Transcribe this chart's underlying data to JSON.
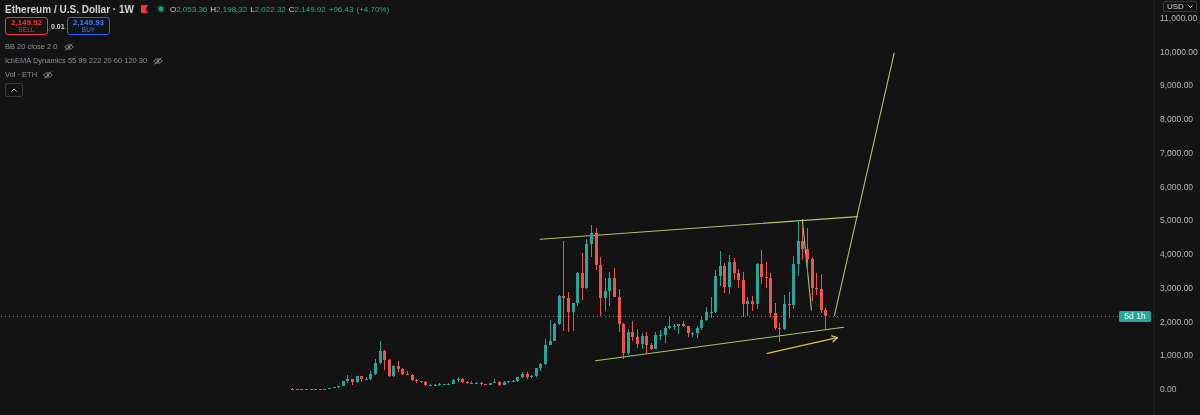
{
  "chart_data": {
    "type": "candlestick",
    "title": "Ethereum / U.S. Dollar · 1W",
    "subtitle": "O2,053.36 H2,198.32 L2,022.32 C2,149.92 +96.43 (+4.70%)",
    "categories": [
      null,
      null,
      null,
      null,
      null,
      null,
      null,
      null,
      null,
      null,
      null,
      null,
      null,
      null,
      null,
      null,
      null,
      null,
      null,
      null,
      null,
      null,
      null,
      null,
      null,
      null,
      null,
      null,
      null,
      null,
      null,
      null,
      null,
      null,
      null,
      null,
      null,
      null,
      null,
      null,
      null,
      null,
      null,
      null,
      null,
      null,
      null,
      null,
      null,
      null,
      null,
      null,
      null,
      null,
      null,
      null,
      null,
      null,
      null,
      null,
      null,
      null,
      null,
      null,
      null,
      null,
      null,
      null,
      null,
      null,
      null,
      null,
      null,
      null,
      null,
      null,
      null,
      null,
      null,
      null,
      null,
      null,
      null,
      null,
      null,
      null,
      null,
      null,
      null,
      null,
      null,
      null,
      null,
      null,
      null,
      null,
      null,
      null,
      null,
      null,
      null,
      null,
      null,
      null,
      null,
      null,
      null,
      null,
      null,
      null,
      null,
      null,
      null,
      null,
      null,
      null,
      null,
      null,
      null,
      null,
      null,
      null,
      null,
      null,
      null,
      null,
      null,
      null,
      null,
      null,
      null,
      null,
      null,
      null,
      null,
      null,
      null,
      null,
      null,
      null,
      null,
      null,
      null,
      null,
      null,
      null,
      null,
      null,
      null,
      null,
      null,
      null,
      null,
      null,
      null,
      null,
      null,
      null,
      null,
      null,
      null,
      null,
      null,
      null,
      null,
      null,
      null,
      null,
      null,
      null,
      null,
      null,
      null,
      null,
      null,
      null,
      null,
      null,
      null,
      null,
      null,
      null,
      null,
      null,
      null,
      null,
      null,
      null,
      null,
      null,
      null,
      null,
      null,
      null,
      null,
      null,
      null,
      null,
      null,
      null,
      null,
      null,
      null,
      null,
      null,
      null,
      null,
      null,
      null,
      null,
      null,
      null,
      null,
      null,
      null,
      null,
      null,
      null,
      null,
      null,
      null,
      null,
      null,
      null,
      null,
      null,
      null,
      null,
      null,
      null,
      null,
      null,
      null,
      null,
      null,
      null,
      null,
      null,
      null,
      null,
      null,
      null,
      null,
      null,
      null,
      null,
      null,
      null,
      null,
      null,
      null
    ],
    "ohlc": [
      null,
      null,
      null,
      null,
      null,
      null,
      null,
      null,
      null,
      null,
      null,
      null,
      null,
      null,
      null,
      null,
      null,
      null,
      null,
      null,
      null,
      null,
      null,
      null,
      null,
      null,
      null,
      null,
      null,
      null,
      null,
      null,
      null,
      null,
      null,
      null,
      null,
      null,
      null,
      null,
      null,
      null,
      null,
      null,
      null,
      null,
      null,
      null,
      null,
      null,
      null,
      null,
      null,
      null,
      null,
      null,
      null,
      null,
      null,
      null,
      null,
      null,
      null,
      [
        10,
        20,
        10,
        10
      ],
      [
        10,
        10,
        10,
        10
      ],
      [
        10,
        10,
        10,
        10
      ],
      [
        10,
        10,
        10,
        10
      ],
      [
        10,
        10,
        10,
        10
      ],
      [
        10,
        10,
        10,
        10
      ],
      [
        10,
        10,
        10,
        10
      ],
      [
        10,
        10,
        10,
        10
      ],
      [
        10,
        20,
        10,
        20
      ],
      [
        20,
        60,
        20,
        50
      ],
      [
        50,
        80,
        40,
        80
      ],
      [
        80,
        240,
        80,
        230
      ],
      [
        230,
        420,
        190,
        290
      ],
      [
        290,
        300,
        130,
        200
      ],
      [
        200,
        400,
        190,
        390
      ],
      [
        390,
        400,
        200,
        300
      ],
      [
        300,
        350,
        280,
        310
      ],
      [
        310,
        520,
        280,
        450
      ],
      [
        450,
        880,
        420,
        760
      ],
      [
        760,
        1420,
        740,
        1120
      ],
      [
        1120,
        1160,
        570,
        860
      ],
      [
        860,
        880,
        360,
        400
      ],
      [
        400,
        710,
        370,
        670
      ],
      [
        670,
        830,
        510,
        580
      ],
      [
        580,
        620,
        410,
        460
      ],
      [
        460,
        520,
        420,
        430
      ],
      [
        430,
        440,
        250,
        280
      ],
      [
        280,
        300,
        170,
        230
      ],
      [
        230,
        240,
        180,
        200
      ],
      [
        200,
        230,
        100,
        110
      ],
      [
        110,
        160,
        80,
        130
      ],
      [
        130,
        160,
        100,
        110
      ],
      [
        110,
        170,
        100,
        140
      ],
      [
        140,
        150,
        130,
        140
      ],
      [
        140,
        190,
        140,
        160
      ],
      [
        160,
        290,
        160,
        270
      ],
      [
        270,
        360,
        220,
        290
      ],
      [
        290,
        320,
        190,
        220
      ],
      [
        220,
        240,
        160,
        170
      ],
      [
        170,
        230,
        150,
        180
      ],
      [
        180,
        200,
        160,
        180
      ],
      [
        180,
        200,
        130,
        150
      ],
      [
        150,
        160,
        120,
        130
      ],
      [
        130,
        190,
        130,
        180
      ],
      [
        180,
        290,
        180,
        220
      ],
      [
        220,
        240,
        90,
        130
      ],
      [
        130,
        230,
        130,
        210
      ],
      [
        210,
        250,
        180,
        230
      ],
      [
        230,
        260,
        220,
        230
      ],
      [
        230,
        350,
        220,
        350
      ],
      [
        350,
        490,
        340,
        440
      ],
      [
        440,
        490,
        310,
        360
      ],
      [
        360,
        420,
        340,
        390
      ],
      [
        390,
        620,
        370,
        620
      ],
      [
        620,
        760,
        530,
        740
      ],
      [
        740,
        1480,
        710,
        1310
      ],
      [
        1310,
        2040,
        1300,
        1420
      ],
      [
        1420,
        1950,
        1410,
        1920
      ],
      [
        1920,
        2800,
        1900,
        2770
      ],
      [
        2770,
        4380,
        1730,
        2710
      ],
      [
        2710,
        2890,
        1700,
        2280
      ],
      [
        2280,
        2550,
        1720,
        2540
      ],
      [
        2540,
        3470,
        2450,
        3430
      ],
      [
        3430,
        4030,
        2650,
        3000
      ],
      [
        3000,
        4460,
        2970,
        4290
      ],
      [
        4290,
        4870,
        3900,
        4630
      ],
      [
        4630,
        4780,
        3520,
        3680
      ],
      [
        3680,
        3900,
        2160,
        2690
      ],
      [
        2690,
        3290,
        2300,
        2920
      ],
      [
        2920,
        3480,
        2450,
        3280
      ],
      [
        3280,
        3580,
        2720,
        2730
      ],
      [
        2730,
        2960,
        1700,
        1940
      ],
      [
        1940,
        1970,
        880,
        1070
      ],
      [
        1070,
        1780,
        1000,
        1680
      ],
      [
        1680,
        2030,
        1420,
        1550
      ],
      [
        1550,
        1790,
        1220,
        1330
      ],
      [
        1330,
        1660,
        1190,
        1570
      ],
      [
        1570,
        1680,
        1080,
        1300
      ],
      [
        1300,
        1350,
        1150,
        1200
      ],
      [
        1200,
        1680,
        1190,
        1590
      ],
      [
        1590,
        1750,
        1460,
        1610
      ],
      [
        1610,
        1860,
        1370,
        1820
      ],
      [
        1820,
        2140,
        1780,
        1870
      ],
      [
        1870,
        1930,
        1740,
        1870
      ],
      [
        1870,
        1940,
        1620,
        1930
      ],
      [
        1930,
        2030,
        1830,
        1860
      ],
      [
        1860,
        1880,
        1550,
        1650
      ],
      [
        1650,
        1700,
        1530,
        1670
      ],
      [
        1670,
        1870,
        1520,
        1820
      ],
      [
        1820,
        2140,
        1760,
        2050
      ],
      [
        2050,
        2420,
        2030,
        2280
      ],
      [
        2280,
        2720,
        2100,
        2280
      ],
      [
        2280,
        3520,
        2260,
        3340
      ],
      [
        3340,
        4090,
        3050,
        3650
      ],
      [
        3650,
        3730,
        2850,
        3020
      ],
      [
        3020,
        3980,
        2820,
        3760
      ],
      [
        3760,
        3890,
        3240,
        3430
      ],
      [
        3430,
        3560,
        2980,
        3230
      ],
      [
        3230,
        3480,
        2120,
        2510
      ],
      [
        2510,
        2730,
        2150,
        2600
      ],
      [
        2600,
        2770,
        2300,
        2520
      ],
      [
        2520,
        3740,
        2360,
        3710
      ],
      [
        3710,
        4110,
        3100,
        3330
      ],
      [
        3330,
        3750,
        3000,
        3300
      ],
      [
        3300,
        3440,
        2120,
        2240
      ],
      [
        2240,
        2550,
        1750,
        1820
      ],
      [
        1820,
        1960,
        1390,
        1790
      ],
      [
        1790,
        2790,
        1750,
        2530
      ],
      [
        2530,
        2880,
        2110,
        2490
      ],
      [
        2490,
        3940,
        2370,
        3700
      ],
      [
        3700,
        4950,
        3350,
        4390
      ],
      [
        4390,
        4770,
        3820,
        4150
      ],
      [
        4150,
        4760,
        3440,
        3850
      ],
      [
        3850,
        3920,
        2620,
        2990
      ],
      [
        2990,
        3450,
        2780,
        2970
      ],
      [
        2970,
        3400,
        2250,
        2350
      ],
      [
        2350,
        2400,
        1750,
        2150
      ],
      null,
      null,
      null,
      null,
      null,
      null,
      null,
      null,
      null,
      null,
      null,
      null,
      null,
      null,
      null,
      null,
      null,
      null,
      null,
      null,
      null,
      null,
      null,
      null,
      null,
      null,
      null,
      null,
      null,
      null,
      null,
      null,
      null,
      null,
      null,
      null,
      null,
      null,
      null,
      null,
      null,
      null,
      null,
      null,
      null,
      null,
      null,
      null,
      null,
      null,
      null,
      null,
      null,
      null,
      null,
      null,
      null,
      null,
      null,
      null,
      null,
      null,
      null,
      null,
      null,
      null,
      null,
      null,
      null,
      null,
      null
    ],
    "colors": [
      null,
      null,
      null,
      null,
      null,
      null,
      null,
      null,
      null,
      null,
      null,
      null,
      null,
      null,
      null,
      null,
      null,
      null,
      null,
      null,
      null,
      null,
      null,
      null,
      null,
      null,
      null,
      null,
      null,
      null,
      null,
      null,
      null,
      null,
      null,
      null,
      null,
      null,
      null,
      null,
      null,
      null,
      null,
      null,
      null,
      null,
      null,
      null,
      null,
      null,
      null,
      null,
      null,
      null,
      null,
      null,
      null,
      null,
      null,
      null,
      null,
      null,
      null,
      "#ef5350",
      "#ef5350",
      "#ef5350",
      "#26a69a",
      "#ef5350",
      "#ef5350",
      "#ef5350",
      "#26a69a",
      "#26a69a",
      "#26a69a",
      "#26a69a",
      "#26a69a",
      "#26a69a",
      "#ef5350",
      "#26a69a",
      "#ef5350",
      "#26a69a",
      "#26a69a",
      "#26a69a",
      "#26a69a",
      "#ef5350",
      "#ef5350",
      "#26a69a",
      "#ef5350",
      "#ef5350",
      "#ef5350",
      "#ef5350",
      "#ef5350",
      "#ef5350",
      "#ef5350",
      "#26a69a",
      "#ef5350",
      "#26a69a",
      "#26a69a",
      "#26a69a",
      "#26a69a",
      "#26a69a",
      "#ef5350",
      "#ef5350",
      "#26a69a",
      "#26a69a",
      "#ef5350",
      "#ef5350",
      "#26a69a",
      "#26a69a",
      "#ef5350",
      "#26a69a",
      "#26a69a",
      "#ef5350",
      "#26a69a",
      "#26a69a",
      "#ef5350",
      "#26a69a",
      "#26a69a",
      "#26a69a",
      "#26a69a",
      "#26a69a",
      "#26a69a",
      "#26a69a",
      "#ef5350",
      "#ef5350",
      "#26a69a",
      "#26a69a",
      "#ef5350",
      "#26a69a",
      "#26a69a",
      "#ef5350",
      "#ef5350",
      "#26a69a",
      "#26a69a",
      "#ef5350",
      "#ef5350",
      "#ef5350",
      "#26a69a",
      "#ef5350",
      "#ef5350",
      "#26a69a",
      "#ef5350",
      "#ef5350",
      "#26a69a",
      "#26a69a",
      "#26a69a",
      "#26a69a",
      "#26a69a",
      "#26a69a",
      "#ef5350",
      "#ef5350",
      "#26a69a",
      "#26a69a",
      "#26a69a",
      "#26a69a",
      "#26a69a",
      "#26a69a",
      "#26a69a",
      "#ef5350",
      "#26a69a",
      "#ef5350",
      "#ef5350",
      "#ef5350",
      "#26a69a",
      "#ef5350",
      "#26a69a",
      "#ef5350",
      "#ef5350",
      "#ef5350",
      "#ef5350",
      "#ef5350",
      "#26a69a",
      "#ef5350",
      "#26a69a",
      "#26a69a",
      "#ef5350",
      "#ef5350",
      "#ef5350",
      "#ef5350",
      "#ef5350",
      "#ef5350",
      null,
      null,
      null,
      null,
      null,
      null,
      null,
      null,
      null,
      null,
      null,
      null,
      null,
      null,
      null,
      null,
      null,
      null,
      null,
      null,
      null,
      null,
      null,
      null,
      null,
      null,
      null,
      null,
      null,
      null,
      null,
      null,
      null,
      null,
      null,
      null,
      null,
      null,
      null,
      null,
      null,
      null,
      null,
      null,
      null,
      null,
      null,
      null,
      null,
      null,
      null,
      null,
      null,
      null,
      null,
      null,
      null,
      null,
      null,
      null,
      null,
      null,
      null,
      null,
      null,
      null,
      null,
      null,
      null,
      null,
      null
    ],
    "series": [
      {
        "type": "line",
        "color": "#a9c46c",
        "values": [
          null,
          null,
          null,
          null,
          null,
          null,
          null,
          null,
          null,
          null,
          null,
          null,
          null,
          null,
          null,
          null,
          null,
          null,
          null,
          null,
          null,
          null,
          null,
          null,
          null,
          null,
          null,
          null,
          null,
          null,
          null,
          null,
          null,
          null,
          null,
          null,
          null,
          null,
          null,
          null,
          null,
          null,
          null,
          null,
          null,
          null,
          null,
          null,
          null,
          null,
          null,
          null,
          null,
          null,
          null,
          null,
          null,
          null,
          null,
          null,
          null,
          null,
          null,
          null,
          null,
          null,
          null,
          null,
          null,
          null,
          null,
          null,
          null,
          null,
          null,
          null,
          null,
          null,
          null,
          null,
          null,
          null,
          null,
          null,
          null,
          null,
          null,
          null,
          null,
          null,
          null,
          null,
          null,
          null,
          null,
          null,
          null,
          null,
          null,
          null,
          null,
          null,
          null,
          null,
          null,
          null,
          null,
          null,
          null,
          null,
          null,
          null,
          null,
          null,
          null,
          null,
          null,
          4440,
          null,
          null,
          null,
          null,
          null,
          null,
          null,
          null,
          null,
          null,
          null,
          null,
          null,
          null,
          null,
          null,
          null,
          null,
          null,
          null,
          null,
          null,
          null,
          null,
          null,
          null,
          null,
          null,
          null,
          null,
          null,
          null,
          null,
          null,
          null,
          null,
          null,
          null,
          null,
          null,
          null,
          null,
          null,
          null,
          null,
          null,
          null,
          null,
          null,
          null,
          null,
          null,
          null,
          null,
          null,
          null,
          null,
          null,
          null,
          null,
          null,
          null,
          null,
          null,
          null,
          null,
          null,
          null,
          5110,
          null,
          null,
          null,
          null,
          null,
          null,
          null,
          null,
          null,
          null,
          null,
          null,
          null,
          null,
          null,
          null,
          null,
          null,
          null,
          null,
          null,
          null,
          null,
          null,
          null,
          null,
          null,
          null,
          null,
          null,
          null,
          null,
          null,
          null,
          null,
          null,
          null,
          null,
          null,
          null,
          null,
          null,
          null,
          null,
          null,
          null,
          null,
          null,
          null,
          null,
          null,
          null,
          null,
          null,
          null,
          null,
          null,
          null,
          null,
          null,
          null,
          null,
          null,
          null
        ]
      },
      {
        "type": "line",
        "color": "#a9c46c",
        "values": [
          null,
          null,
          null,
          null,
          null,
          null,
          null,
          null,
          null,
          null,
          null,
          null,
          null,
          null,
          null,
          null,
          null,
          null,
          null,
          null,
          null,
          null,
          null,
          null,
          null,
          null,
          null,
          null,
          null,
          null,
          null,
          null,
          null,
          null,
          null,
          null,
          null,
          null,
          null,
          null,
          null,
          null,
          null,
          null,
          null,
          null,
          null,
          null,
          null,
          null,
          null,
          null,
          null,
          null,
          null,
          null,
          null,
          null,
          null,
          null,
          null,
          null,
          null,
          null,
          null,
          null,
          null,
          null,
          null,
          null,
          null,
          null,
          null,
          null,
          null,
          null,
          null,
          null,
          null,
          null,
          null,
          null,
          null,
          null,
          null,
          null,
          null,
          null,
          null,
          null,
          null,
          null,
          null,
          null,
          null,
          null,
          null,
          null,
          null,
          null,
          null,
          null,
          null,
          null,
          null,
          null,
          null,
          null,
          null,
          null,
          null,
          null,
          null,
          null,
          null,
          null,
          null,
          null,
          null,
          null,
          null,
          null,
          null,
          null,
          null,
          null,
          null,
          null,
          null,
          840,
          null,
          null,
          null,
          null,
          null,
          null,
          null,
          null,
          null,
          null,
          null,
          null,
          null,
          null,
          null,
          null,
          null,
          null,
          null,
          null,
          null,
          null,
          null,
          null,
          null,
          null,
          null,
          null,
          null,
          null,
          null,
          null,
          null,
          null,
          null,
          null,
          null,
          null,
          null,
          null,
          null,
          null,
          null,
          null,
          null,
          null,
          null,
          null,
          null,
          null,
          null,
          null,
          null,
          1830,
          null,
          null,
          null,
          null,
          null,
          null,
          null,
          null,
          null,
          null,
          null,
          null,
          null,
          null,
          null,
          null,
          null,
          null,
          null,
          null,
          null,
          null,
          null,
          null,
          null,
          null,
          null,
          null,
          null,
          null,
          null,
          null,
          null,
          null,
          null,
          null,
          null,
          null,
          null,
          null,
          null,
          null,
          null,
          null,
          null,
          null,
          null,
          null,
          null,
          null,
          null,
          null,
          null,
          null,
          null,
          null,
          null,
          null,
          null,
          null,
          null,
          null,
          null,
          null,
          null,
          null,
          null
        ]
      },
      {
        "type": "line",
        "color": "#a9c46c",
        "values": [
          null,
          null,
          null,
          null,
          null,
          null,
          null,
          null,
          null,
          null,
          null,
          null,
          null,
          null,
          null,
          null,
          null,
          null,
          null,
          null,
          null,
          null,
          null,
          null,
          null,
          null,
          null,
          null,
          null,
          null,
          null,
          null,
          null,
          null,
          null,
          null,
          null,
          null,
          null,
          null,
          null,
          null,
          null,
          null,
          null,
          null,
          null,
          null,
          null,
          null,
          null,
          null,
          null,
          null,
          null,
          null,
          null,
          null,
          null,
          null,
          null,
          null,
          null,
          null,
          null,
          null,
          null,
          null,
          null,
          null,
          null,
          null,
          null,
          null,
          null,
          null,
          null,
          null,
          null,
          null,
          null,
          null,
          null,
          null,
          null,
          null,
          null,
          null,
          null,
          null,
          null,
          null,
          null,
          null,
          null,
          null,
          null,
          null,
          null,
          null,
          null,
          null,
          null,
          null,
          null,
          null,
          null,
          null,
          null,
          null,
          null,
          null,
          null,
          null,
          null,
          null,
          null,
          null,
          null,
          null,
          null,
          null,
          null,
          null,
          null,
          null,
          null,
          null,
          null,
          null,
          null,
          null,
          null,
          null,
          null,
          null,
          null,
          null,
          null,
          null,
          null,
          null,
          null,
          null,
          null,
          null,
          null,
          null,
          null,
          null,
          null,
          null,
          null,
          null,
          null,
          null,
          null,
          null,
          null,
          null,
          null,
          null,
          null,
          null,
          null,
          null,
          null,
          null,
          null,
          null,
          null,
          null,
          null,
          null,
          null,
          null,
          null,
          null,
          null,
          null,
          null,
          2180,
          null,
          null,
          null,
          null,
          null,
          null,
          null,
          null,
          null,
          null,
          null,
          null,
          9960,
          null,
          null,
          null,
          null,
          null,
          null,
          null,
          null,
          null,
          null,
          null,
          null,
          null,
          null,
          null,
          null,
          null,
          null,
          null,
          null,
          null,
          null,
          null,
          null,
          null,
          null,
          null,
          null,
          null,
          null,
          null,
          null,
          null,
          null,
          null,
          null,
          null,
          null,
          null,
          null,
          null,
          null,
          null,
          null,
          null,
          null,
          null,
          null,
          null,
          null,
          null,
          null,
          null,
          null,
          null,
          null
        ]
      },
      {
        "type": "line",
        "color": "#a9c46c",
        "values": [
          null,
          null,
          null,
          null,
          null,
          null,
          null,
          null,
          null,
          null,
          null,
          null,
          null,
          null,
          null,
          null,
          null,
          null,
          null,
          null,
          null,
          null,
          null,
          null,
          null,
          null,
          null,
          null,
          null,
          null,
          null,
          null,
          null,
          null,
          null,
          null,
          null,
          null,
          null,
          null,
          null,
          null,
          null,
          null,
          null,
          null,
          null,
          null,
          null,
          null,
          null,
          null,
          null,
          null,
          null,
          null,
          null,
          null,
          null,
          null,
          null,
          null,
          null,
          null,
          null,
          null,
          null,
          null,
          null,
          null,
          null,
          null,
          null,
          null,
          null,
          null,
          null,
          null,
          null,
          null,
          null,
          null,
          null,
          null,
          null,
          null,
          null,
          null,
          null,
          null,
          null,
          null,
          null,
          null,
          null,
          null,
          null,
          null,
          null,
          null,
          null,
          null,
          null,
          null,
          null,
          null,
          null,
          null,
          null,
          null,
          null,
          null,
          null,
          null,
          null,
          null,
          null,
          null,
          null,
          null,
          null,
          null,
          null,
          null,
          null,
          null,
          null,
          null,
          null,
          null,
          null,
          null,
          null,
          null,
          null,
          null,
          null,
          null,
          null,
          null,
          null,
          null,
          null,
          null,
          null,
          null,
          null,
          null,
          null,
          null,
          null,
          null,
          null,
          null,
          null,
          null,
          null,
          null,
          null,
          null,
          null,
          null,
          null,
          null,
          null,
          null,
          null,
          null,
          null,
          null,
          null,
          null,
          null,
          null,
          5030,
          null,
          2340,
          null,
          null,
          null,
          null,
          null,
          null,
          null,
          null,
          null,
          null,
          null,
          null,
          null,
          null,
          null,
          null,
          null,
          null,
          null,
          null,
          null,
          null,
          null,
          null,
          null,
          null,
          null,
          null,
          null,
          null,
          null,
          null,
          null,
          null,
          null,
          null,
          null,
          null,
          null,
          null,
          null,
          null,
          null,
          null,
          null,
          null,
          null,
          null,
          null,
          null,
          null,
          null,
          null,
          null,
          null,
          null,
          null,
          null,
          null,
          null,
          null,
          null,
          null,
          null,
          null,
          null,
          null,
          null,
          null,
          null,
          null,
          null,
          null,
          null
        ]
      }
    ],
    "ylim": [
      -770,
      11530
    ],
    "yticks": [
      {
        "value": 0,
        "label": "0.00"
      },
      {
        "value": 1000,
        "label": "1,000.00"
      },
      {
        "value": 2000,
        "label": "2,000.00"
      },
      {
        "value": 3000,
        "label": "3,000.00"
      },
      {
        "value": 4000,
        "label": "4,000.00"
      },
      {
        "value": 5000,
        "label": "5,000.00"
      },
      {
        "value": 6000,
        "label": "6,000.00"
      },
      {
        "value": 7000,
        "label": "7,000.00"
      },
      {
        "value": 8000,
        "label": "8,000.00"
      },
      {
        "value": 9000,
        "label": "9,000.00"
      },
      {
        "value": 10000,
        "label": "10,000.00"
      },
      {
        "value": 11000,
        "label": "11,000.00"
      }
    ],
    "ref_lines": [
      {
        "axis": "y",
        "value": 2150,
        "label": "5d 1h",
        "color": "#22ab94",
        "line_style": "dotted"
      }
    ],
    "annotations": [
      "2,149.92",
      "SELL",
      "0.01",
      "2,149.93",
      "BUY",
      "BB 20 close 2 0",
      "IchEMA Dynamics 55 99 222 20 60 120 30",
      "Vol · ETH",
      "USD"
    ]
  }
}
